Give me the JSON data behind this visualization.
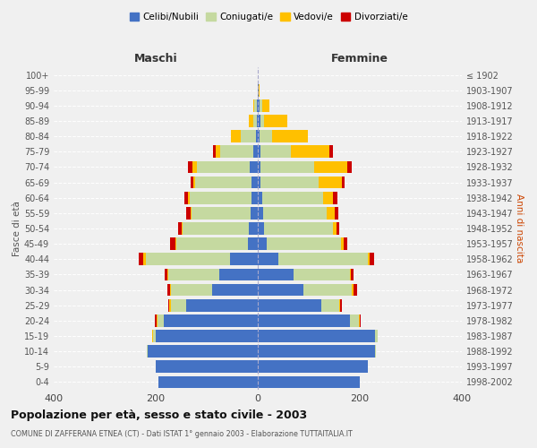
{
  "age_groups": [
    "0-4",
    "5-9",
    "10-14",
    "15-19",
    "20-24",
    "25-29",
    "30-34",
    "35-39",
    "40-44",
    "45-49",
    "50-54",
    "55-59",
    "60-64",
    "65-69",
    "70-74",
    "75-79",
    "80-84",
    "85-89",
    "90-94",
    "95-99",
    "100+"
  ],
  "birth_years": [
    "1998-2002",
    "1993-1997",
    "1988-1992",
    "1983-1987",
    "1978-1982",
    "1973-1977",
    "1968-1972",
    "1963-1967",
    "1958-1962",
    "1953-1957",
    "1948-1952",
    "1943-1947",
    "1938-1942",
    "1933-1937",
    "1928-1932",
    "1923-1927",
    "1918-1922",
    "1913-1917",
    "1908-1912",
    "1903-1907",
    "≤ 1902"
  ],
  "maschi": {
    "celibi": [
      195,
      200,
      215,
      200,
      185,
      140,
      90,
      75,
      55,
      20,
      17,
      14,
      13,
      12,
      15,
      8,
      3,
      1,
      2,
      0,
      0
    ],
    "coniugati": [
      0,
      0,
      2,
      5,
      12,
      30,
      80,
      100,
      165,
      140,
      130,
      115,
      120,
      110,
      105,
      65,
      30,
      8,
      5,
      0,
      0
    ],
    "vedovi": [
      0,
      0,
      0,
      2,
      2,
      3,
      2,
      2,
      5,
      2,
      2,
      3,
      3,
      5,
      8,
      10,
      20,
      8,
      2,
      0,
      0
    ],
    "divorziati": [
      0,
      0,
      0,
      0,
      2,
      3,
      5,
      5,
      8,
      10,
      8,
      8,
      7,
      5,
      8,
      5,
      0,
      0,
      0,
      0,
      0
    ]
  },
  "femmine": {
    "nubili": [
      200,
      215,
      230,
      230,
      180,
      125,
      90,
      70,
      40,
      18,
      12,
      10,
      8,
      5,
      5,
      5,
      3,
      5,
      3,
      2,
      0
    ],
    "coniugate": [
      0,
      0,
      2,
      5,
      18,
      35,
      95,
      110,
      175,
      145,
      135,
      125,
      120,
      115,
      105,
      60,
      25,
      8,
      5,
      0,
      0
    ],
    "vedove": [
      0,
      0,
      0,
      0,
      2,
      2,
      2,
      3,
      5,
      5,
      8,
      15,
      20,
      45,
      65,
      75,
      70,
      45,
      15,
      2,
      0
    ],
    "divorziate": [
      0,
      0,
      0,
      0,
      2,
      3,
      8,
      5,
      8,
      8,
      5,
      8,
      8,
      5,
      10,
      8,
      0,
      0,
      0,
      0,
      0
    ]
  },
  "colors": {
    "celibi": "#4472c4",
    "coniugati": "#c5d9a0",
    "vedovi": "#ffc000",
    "divorziati": "#cc0000"
  },
  "xlim": 400,
  "title": "Popolazione per età, sesso e stato civile - 2003",
  "subtitle": "COMUNE DI ZAFFERANA ETNEA (CT) - Dati ISTAT 1° gennaio 2003 - Elaborazione TUTTAITALIA.IT",
  "ylabel_left": "Fasce di età",
  "ylabel_right": "Anni di nascita",
  "legend_labels": [
    "Celibi/Nubili",
    "Coniugati/e",
    "Vedovi/e",
    "Divorziati/e"
  ],
  "maschi_label": "Maschi",
  "femmine_label": "Femmine",
  "bg_color": "#f0f0f0",
  "bar_height": 0.8
}
